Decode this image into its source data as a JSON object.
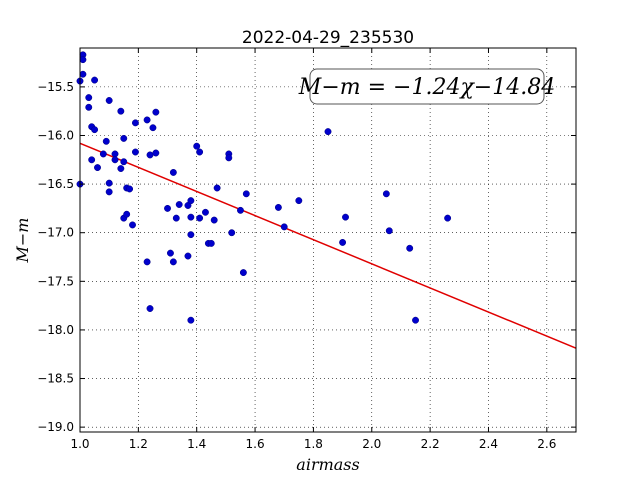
{
  "chart_data": {
    "type": "scatter",
    "title": "2022-04-29_235530",
    "xlabel": "airmass",
    "ylabel": "M−m",
    "xlim": [
      1.0,
      2.7
    ],
    "ylim": [
      -19.05,
      -15.1
    ],
    "xticks": [
      "1.0",
      "1.2",
      "1.4",
      "1.6",
      "1.8",
      "2.0",
      "2.2",
      "2.4",
      "2.6"
    ],
    "xtick_values": [
      1.0,
      1.2,
      1.4,
      1.6,
      1.8,
      2.0,
      2.2,
      2.4,
      2.6
    ],
    "yticks": [
      "−15.5",
      "−16.0",
      "−16.5",
      "−17.0",
      "−17.5",
      "−18.0",
      "−18.5",
      "−19.0"
    ],
    "ytick_values": [
      -15.5,
      -16.0,
      -16.5,
      -17.0,
      -17.5,
      -18.0,
      -18.5,
      -19.0
    ],
    "grid": true,
    "annotation": "M−m = −1.24χ−14.84",
    "fit": {
      "slope": -1.24,
      "intercept": -14.84,
      "color": "#e00000"
    },
    "point_color": "#0000cc",
    "points": [
      [
        1.01,
        -15.17
      ],
      [
        1.01,
        -15.22
      ],
      [
        1.01,
        -15.37
      ],
      [
        1.0,
        -15.44
      ],
      [
        1.05,
        -15.43
      ],
      [
        1.03,
        -15.61
      ],
      [
        1.03,
        -15.71
      ],
      [
        1.04,
        -15.91
      ],
      [
        1.05,
        -15.94
      ],
      [
        1.0,
        -16.5
      ],
      [
        1.04,
        -16.25
      ],
      [
        1.06,
        -16.33
      ],
      [
        1.08,
        -16.19
      ],
      [
        1.09,
        -16.06
      ],
      [
        1.1,
        -15.64
      ],
      [
        1.1,
        -16.49
      ],
      [
        1.1,
        -16.58
      ],
      [
        1.12,
        -16.19
      ],
      [
        1.12,
        -16.25
      ],
      [
        1.14,
        -15.75
      ],
      [
        1.15,
        -16.03
      ],
      [
        1.14,
        -16.34
      ],
      [
        1.15,
        -16.27
      ],
      [
        1.16,
        -16.54
      ],
      [
        1.17,
        -16.55
      ],
      [
        1.15,
        -16.85
      ],
      [
        1.16,
        -16.81
      ],
      [
        1.18,
        -16.92
      ],
      [
        1.19,
        -16.17
      ],
      [
        1.19,
        -15.87
      ],
      [
        1.23,
        -15.84
      ],
      [
        1.24,
        -16.2
      ],
      [
        1.25,
        -15.92
      ],
      [
        1.26,
        -15.76
      ],
      [
        1.26,
        -16.18
      ],
      [
        1.23,
        -17.3
      ],
      [
        1.24,
        -17.78
      ],
      [
        1.3,
        -16.75
      ],
      [
        1.32,
        -16.38
      ],
      [
        1.31,
        -17.21
      ],
      [
        1.32,
        -17.3
      ],
      [
        1.33,
        -16.85
      ],
      [
        1.34,
        -16.71
      ],
      [
        1.37,
        -16.72
      ],
      [
        1.38,
        -16.67
      ],
      [
        1.38,
        -16.84
      ],
      [
        1.38,
        -17.02
      ],
      [
        1.37,
        -17.24
      ],
      [
        1.38,
        -17.9
      ],
      [
        1.4,
        -16.11
      ],
      [
        1.41,
        -16.17
      ],
      [
        1.41,
        -16.85
      ],
      [
        1.43,
        -16.79
      ],
      [
        1.44,
        -17.11
      ],
      [
        1.45,
        -17.11
      ],
      [
        1.46,
        -16.87
      ],
      [
        1.47,
        -16.54
      ],
      [
        1.51,
        -16.19
      ],
      [
        1.51,
        -16.23
      ],
      [
        1.52,
        -17.0
      ],
      [
        1.55,
        -16.77
      ],
      [
        1.56,
        -17.41
      ],
      [
        1.57,
        -16.6
      ],
      [
        1.68,
        -16.74
      ],
      [
        1.7,
        -16.94
      ],
      [
        1.75,
        -16.67
      ],
      [
        1.85,
        -15.96
      ],
      [
        1.91,
        -16.84
      ],
      [
        1.9,
        -17.1
      ],
      [
        2.05,
        -16.6
      ],
      [
        2.06,
        -16.98
      ],
      [
        2.13,
        -17.16
      ],
      [
        2.15,
        -17.9
      ],
      [
        2.26,
        -16.85
      ]
    ]
  }
}
